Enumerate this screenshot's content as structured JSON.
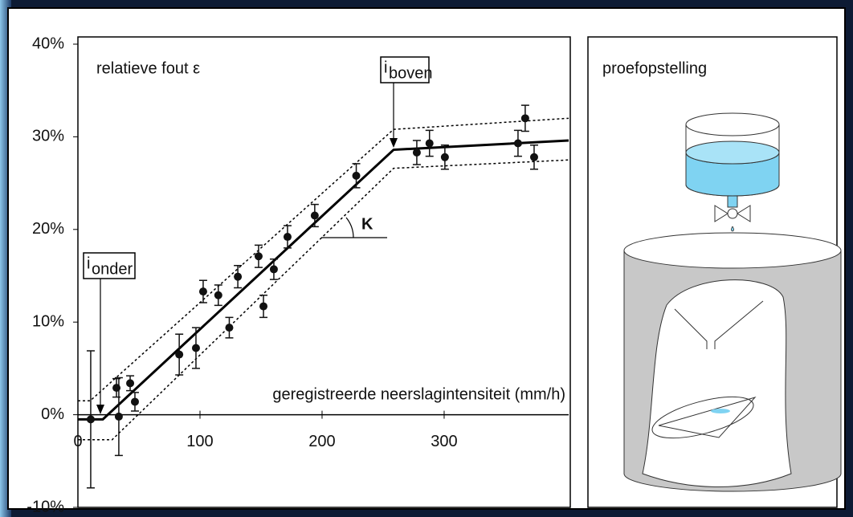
{
  "chart_data": {
    "type": "scatter",
    "y_label": "relatieve fout ε",
    "x_label": "geregistreerde neerslagintensiteit (mm/h)",
    "angle_label": "K",
    "markers": [
      {
        "text": "i",
        "sub": "boven"
      },
      {
        "text": "i",
        "sub": "onder"
      }
    ],
    "color": "#111111",
    "x": [
      10.5,
      31.6,
      33.5,
      42.8,
      46.7,
      83,
      96.7,
      102.6,
      115,
      124,
      131,
      148,
      152,
      160.5,
      171.7,
      194,
      228,
      277.6,
      288,
      300.6,
      360.5,
      366.4,
      373.7
    ],
    "y": [
      -0.5,
      2.9,
      -0.2,
      3.4,
      1.4,
      6.5,
      7.2,
      13.3,
      12.9,
      9.4,
      14.9,
      17.1,
      11.7,
      15.7,
      19.2,
      21.5,
      25.8,
      28.3,
      29.3,
      27.8,
      29.3,
      32.0,
      27.8
    ],
    "err": [
      7.4,
      1.0,
      4.2,
      0.8,
      1.0,
      2.2,
      2.2,
      1.2,
      1.1,
      1.1,
      1.2,
      1.2,
      1.2,
      1.1,
      1.2,
      1.2,
      1.3,
      1.3,
      1.4,
      1.3,
      1.4,
      1.4,
      1.3
    ],
    "fit": [
      {
        "style": "solid",
        "x": [
          0,
          20.4,
          258.6,
          402
        ],
        "y": [
          -0.5,
          -0.5,
          28.6,
          29.6
        ]
      },
      {
        "style": "dashed",
        "x": [
          0,
          10,
          258.6,
          402
        ],
        "y": [
          1.5,
          1.5,
          30.8,
          32.0
        ]
      },
      {
        "style": "dashed",
        "x": [
          0,
          28,
          258.6,
          402
        ],
        "y": [
          -2.7,
          -2.7,
          26.6,
          27.5
        ]
      }
    ],
    "xlim": [
      0,
      402
    ],
    "ylim": [
      -10,
      40
    ],
    "xticks": [
      0,
      100,
      200,
      300
    ],
    "yticks": [
      {
        "value": -10,
        "label": "-10%"
      },
      {
        "value": 0,
        "label": "0%"
      },
      {
        "value": 10,
        "label": "10%"
      },
      {
        "value": 20,
        "label": "20%"
      },
      {
        "value": 30,
        "label": "30%"
      },
      {
        "value": 40,
        "label": "40%"
      }
    ]
  },
  "setup_panel": {
    "title": "proefopstelling"
  }
}
